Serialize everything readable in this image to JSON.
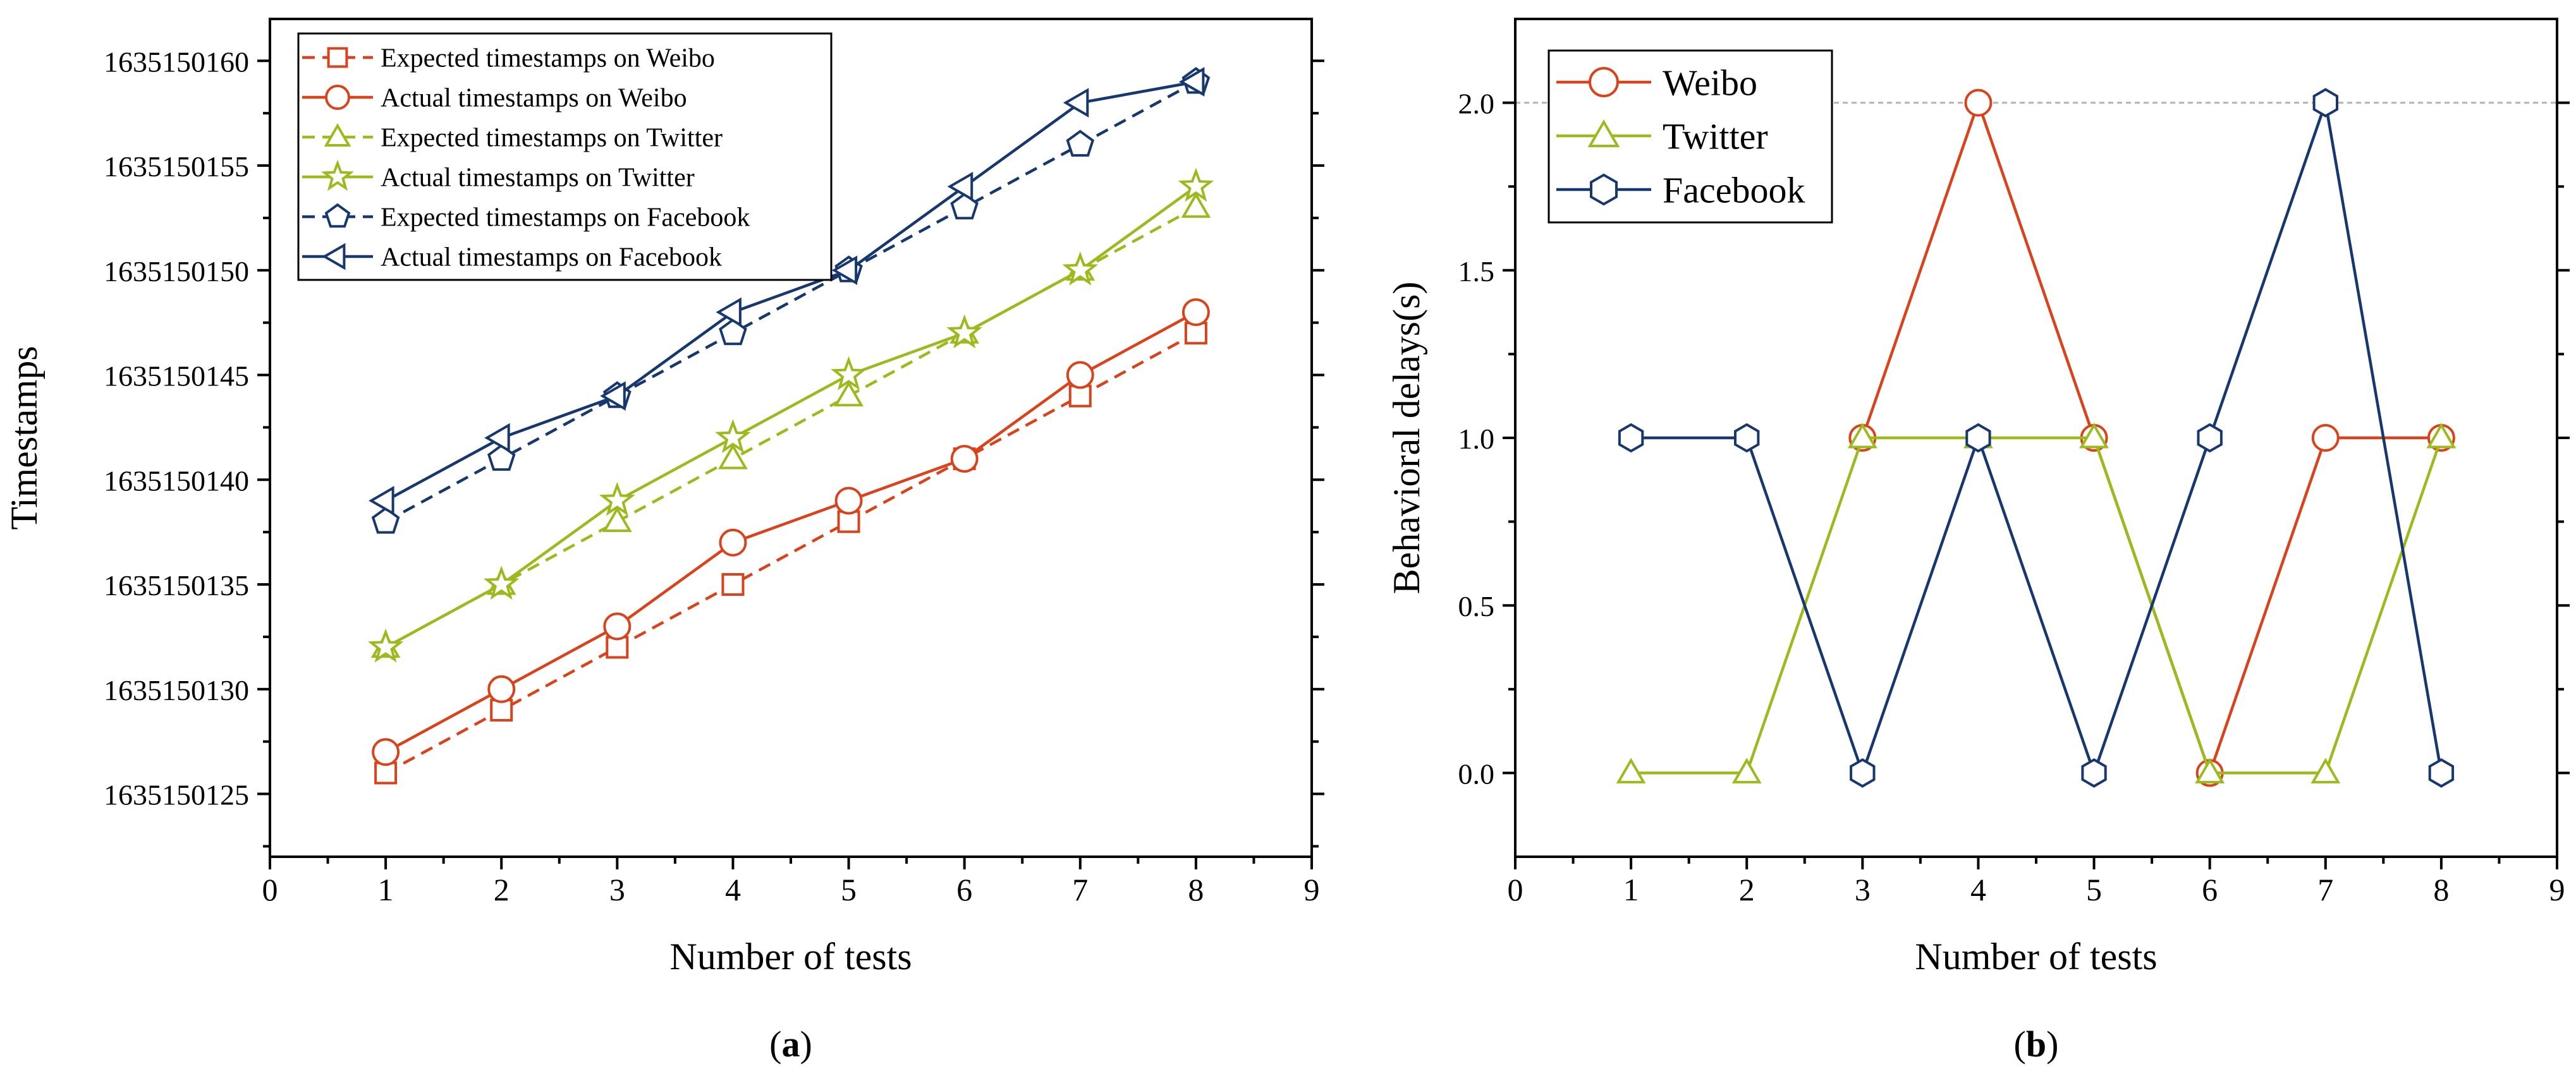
{
  "panels": [
    {
      "label": "(a)",
      "label_letter": "a"
    },
    {
      "label": "(b)",
      "label_letter": "b"
    }
  ],
  "chart_data": [
    {
      "type": "line",
      "xlabel": "Number of tests",
      "ylabel": "Timestamps",
      "xlim": [
        0,
        9
      ],
      "ylim": [
        1635150122,
        1635150162
      ],
      "x_ticks": [
        0,
        1,
        2,
        3,
        4,
        5,
        6,
        7,
        8,
        9
      ],
      "y_ticks": [
        1635150125,
        1635150130,
        1635150135,
        1635150140,
        1635150145,
        1635150150,
        1635150155,
        1635150160
      ],
      "legend_position": "top-left",
      "x": [
        1,
        2,
        3,
        4,
        5,
        6,
        7,
        8
      ],
      "series": [
        {
          "name": "Expected timestamps on Weibo",
          "color": "#d9421a",
          "dash": true,
          "marker": "square",
          "values": [
            1635150126,
            1635150129,
            1635150132,
            1635150135,
            1635150138,
            1635150141,
            1635150144,
            1635150147
          ]
        },
        {
          "name": "Actual timestamps on Weibo",
          "color": "#d9421a",
          "dash": false,
          "marker": "circle",
          "values": [
            1635150127,
            1635150130,
            1635150133,
            1635150137,
            1635150139,
            1635150141,
            1635150145,
            1635150148
          ]
        },
        {
          "name": "Expected timestamps on Twitter",
          "color": "#9cba1e",
          "dash": true,
          "marker": "triangle",
          "values": [
            1635150132,
            1635150135,
            1635150138,
            1635150141,
            1635150144,
            1635150147,
            1635150150,
            1635150153
          ]
        },
        {
          "name": "Actual timestamps on Twitter",
          "color": "#9cba1e",
          "dash": false,
          "marker": "star",
          "values": [
            1635150132,
            1635150135,
            1635150139,
            1635150142,
            1635150145,
            1635150147,
            1635150150,
            1635150154
          ]
        },
        {
          "name": "Expected timestamps on Facebook",
          "color": "#17386e",
          "dash": true,
          "marker": "pentagon",
          "values": [
            1635150138,
            1635150141,
            1635150144,
            1635150147,
            1635150150,
            1635150153,
            1635150156,
            1635150159
          ]
        },
        {
          "name": "Actual timestamps on Facebook",
          "color": "#17386e",
          "dash": false,
          "marker": "left-triangle",
          "values": [
            1635150139,
            1635150142,
            1635150144,
            1635150148,
            1635150150,
            1635150154,
            1635150158,
            1635150159
          ]
        }
      ]
    },
    {
      "type": "line",
      "xlabel": "Number of tests",
      "ylabel": "Behavioral delays(s)",
      "xlim": [
        0,
        9
      ],
      "ylim": [
        -0.25,
        2.25
      ],
      "x_ticks": [
        0,
        1,
        2,
        3,
        4,
        5,
        6,
        7,
        8,
        9
      ],
      "y_ticks": [
        0.0,
        0.5,
        1.0,
        1.5,
        2.0
      ],
      "y_tick_labels": [
        "0.0",
        "0.5",
        "1.0",
        "1.5",
        "2.0"
      ],
      "reference_line": 2.0,
      "legend_position": "top-left",
      "x": [
        1,
        2,
        3,
        4,
        5,
        6,
        7,
        8
      ],
      "series": [
        {
          "name": "Weibo",
          "color": "#d9421a",
          "dash": false,
          "marker": "circle",
          "start_index": 2,
          "values": [
            null,
            null,
            1,
            2,
            1,
            0,
            1,
            1
          ]
        },
        {
          "name": "Twitter",
          "color": "#9cba1e",
          "dash": false,
          "marker": "triangle",
          "start_index": 0,
          "values": [
            0,
            0,
            1,
            1,
            1,
            0,
            0,
            1
          ]
        },
        {
          "name": "Facebook",
          "color": "#17386e",
          "dash": false,
          "marker": "hexagon",
          "start_index": 0,
          "values": [
            1,
            1,
            0,
            1,
            0,
            1,
            2,
            0
          ]
        }
      ]
    }
  ]
}
